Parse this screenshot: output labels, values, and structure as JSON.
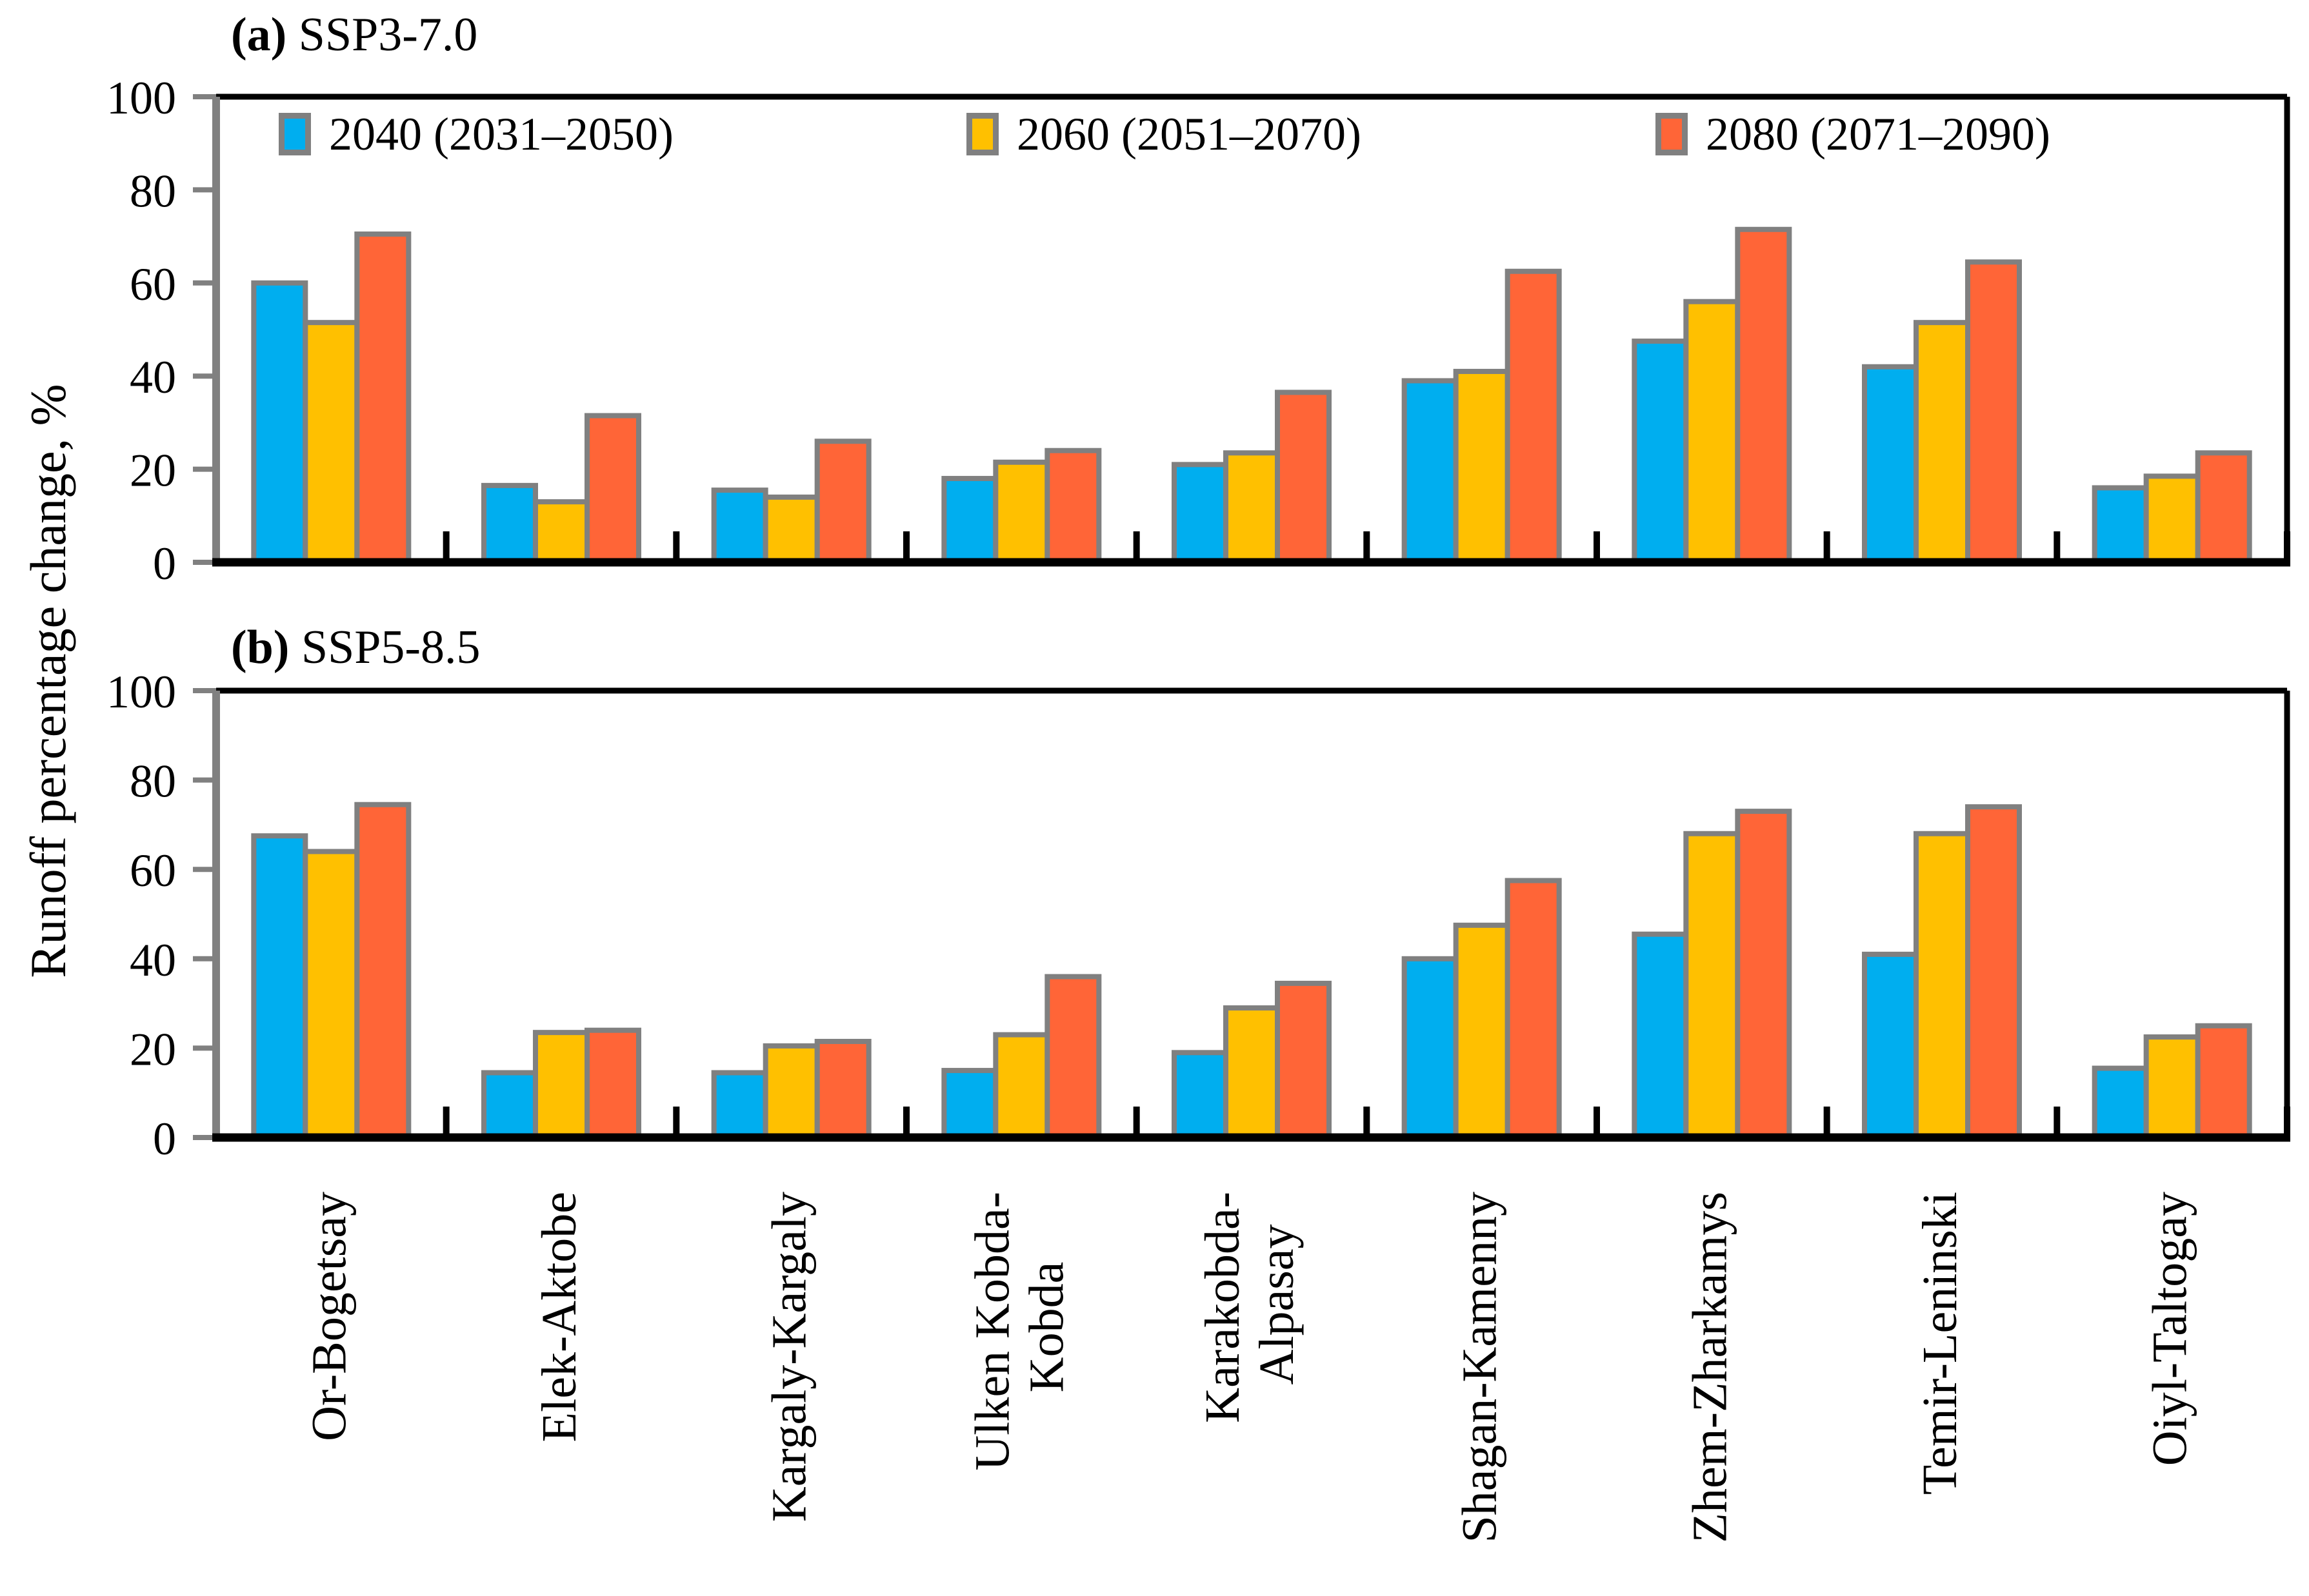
{
  "figure": {
    "ylabel": "Runoff percentage change, %",
    "background_color": "#FFFFFF",
    "axis_color": "#000000",
    "left_axis_color": "#808080",
    "tick_color": "#808080",
    "bar_border_color": "#808080"
  },
  "legend": [
    {
      "label": "2040 (2031–2050)",
      "color": "#00AEEF"
    },
    {
      "label": "2060 (2051–2070)",
      "color": "#FFC000"
    },
    {
      "label": "2080 (2071–2090)",
      "color": "#FF6537"
    }
  ],
  "chart_data": [
    {
      "type": "bar",
      "panel_label": "(a)",
      "title": "SSP3-7.0",
      "ylim": [
        0,
        100
      ],
      "yticks": [
        0,
        20,
        40,
        60,
        80,
        100
      ],
      "grid": false,
      "legend_position": "top-inside",
      "categories": [
        [
          "Or-Bogetsay"
        ],
        [
          "Elek-Aktobe"
        ],
        [
          "Kargaly-Kargaly"
        ],
        [
          "Ulken Kobda-",
          "Kobda"
        ],
        [
          "Karakobda-",
          "Alpasay"
        ],
        [
          "Shagan-Kamenny"
        ],
        [
          "Zhem-Zharkamys"
        ],
        [
          "Temir-Leninski"
        ],
        [
          "Oiyl-Taltogay"
        ]
      ],
      "series": [
        {
          "name": "2040 (2031–2050)",
          "color": "#00AEEF",
          "values": [
            60,
            16.5,
            15.5,
            18,
            21,
            39,
            47.5,
            42,
            16
          ]
        },
        {
          "name": "2060 (2051–2070)",
          "color": "#FFC000",
          "values": [
            51.5,
            13,
            14,
            21.5,
            23.5,
            41,
            56,
            51.5,
            18.5
          ]
        },
        {
          "name": "2080 (2071–2090)",
          "color": "#FF6537",
          "values": [
            70.5,
            31.5,
            26,
            24,
            36.5,
            62.5,
            71.5,
            64.5,
            23.5
          ]
        }
      ]
    },
    {
      "type": "bar",
      "panel_label": "(b)",
      "title": "SSP5-8.5",
      "ylim": [
        0,
        100
      ],
      "yticks": [
        0,
        20,
        40,
        60,
        80,
        100
      ],
      "grid": false,
      "categories": [
        [
          "Or-Bogetsay"
        ],
        [
          "Elek-Aktobe"
        ],
        [
          "Kargaly-Kargaly"
        ],
        [
          "Ulken Kobda-",
          "Kobda"
        ],
        [
          "Karakobda-",
          "Alpasay"
        ],
        [
          "Shagan-Kamenny"
        ],
        [
          "Zhem-Zharkamys"
        ],
        [
          "Temir-Leninski"
        ],
        [
          "Oiyl-Taltogay"
        ]
      ],
      "series": [
        {
          "name": "2040 (2031–2050)",
          "color": "#00AEEF",
          "values": [
            67.5,
            14.5,
            14.5,
            15,
            19,
            40,
            45.5,
            41,
            15.5
          ]
        },
        {
          "name": "2060 (2051–2070)",
          "color": "#FFC000",
          "values": [
            64,
            23.5,
            20.5,
            23,
            29,
            47.5,
            68,
            68,
            22.5
          ]
        },
        {
          "name": "2080 (2071–2090)",
          "color": "#FF6537",
          "values": [
            74.5,
            24,
            21.5,
            36,
            34.5,
            57.5,
            73,
            74,
            25
          ]
        }
      ]
    }
  ]
}
